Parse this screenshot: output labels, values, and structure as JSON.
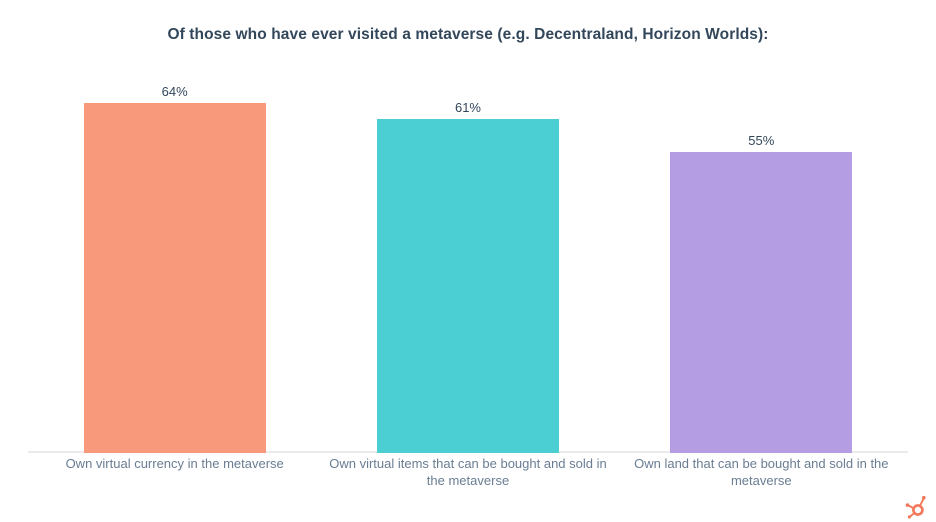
{
  "chart_data": {
    "type": "bar",
    "title": "Of those who have ever visited a metaverse (e.g. Decentraland, Horizon Worlds):",
    "categories": [
      "Own virtual currency in the metaverse",
      "Own virtual items that can be bought and sold in the metaverse",
      "Own land that can be bought and sold in the metaverse"
    ],
    "values": [
      64,
      61,
      55
    ],
    "value_labels": [
      "64%",
      "61%",
      "55%"
    ],
    "bar_colors": [
      "#F8997C",
      "#4CCFD3",
      "#B59DE4"
    ],
    "xlabel": "",
    "ylabel": "",
    "ylim": [
      0,
      70
    ],
    "grid": false,
    "legend": false,
    "value_labels_position": "above-bars",
    "orientation": "vertical"
  },
  "branding": {
    "logo_icon": "hubspot-sprocket-icon",
    "logo_color": "#F4795B"
  },
  "colors": {
    "title_text": "#33475B",
    "value_label_text": "#33475B",
    "axis_label_text": "#6A7D93",
    "axis_line": "#EBEBEB",
    "background": "#FFFFFF"
  }
}
